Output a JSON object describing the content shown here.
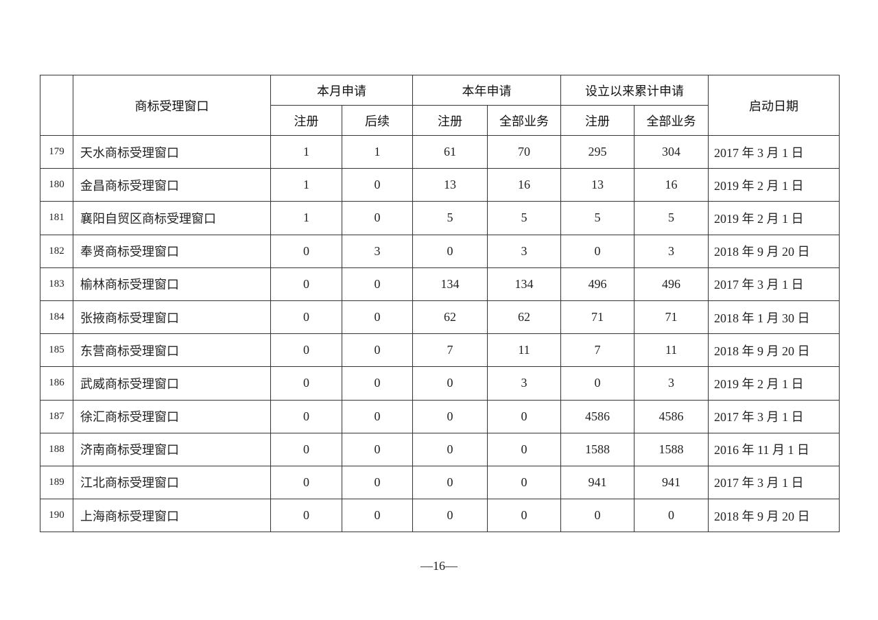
{
  "table": {
    "headers": {
      "name": "商标受理窗口",
      "month": "本月申请",
      "year": "本年申请",
      "cumulative": "设立以来累计申请",
      "start_date": "启动日期",
      "month_sub": [
        "注册",
        "后续"
      ],
      "year_sub": [
        "注册",
        "全部业务"
      ],
      "cumulative_sub": [
        "注册",
        "全部业务"
      ]
    },
    "rows": [
      {
        "no": "179",
        "name": "天水商标受理窗口",
        "m_reg": "1",
        "m_follow": "1",
        "y_reg": "61",
        "y_all": "70",
        "c_reg": "295",
        "c_all": "304",
        "date": "2017 年 3 月 1 日"
      },
      {
        "no": "180",
        "name": "金昌商标受理窗口",
        "m_reg": "1",
        "m_follow": "0",
        "y_reg": "13",
        "y_all": "16",
        "c_reg": "13",
        "c_all": "16",
        "date": "2019 年 2 月 1 日"
      },
      {
        "no": "181",
        "name": "襄阳自贸区商标受理窗口",
        "m_reg": "1",
        "m_follow": "0",
        "y_reg": "5",
        "y_all": "5",
        "c_reg": "5",
        "c_all": "5",
        "date": "2019 年 2 月 1 日"
      },
      {
        "no": "182",
        "name": "奉贤商标受理窗口",
        "m_reg": "0",
        "m_follow": "3",
        "y_reg": "0",
        "y_all": "3",
        "c_reg": "0",
        "c_all": "3",
        "date": "2018 年 9 月 20 日"
      },
      {
        "no": "183",
        "name": "榆林商标受理窗口",
        "m_reg": "0",
        "m_follow": "0",
        "y_reg": "134",
        "y_all": "134",
        "c_reg": "496",
        "c_all": "496",
        "date": "2017 年 3 月 1 日"
      },
      {
        "no": "184",
        "name": "张掖商标受理窗口",
        "m_reg": "0",
        "m_follow": "0",
        "y_reg": "62",
        "y_all": "62",
        "c_reg": "71",
        "c_all": "71",
        "date": "2018 年 1 月 30 日"
      },
      {
        "no": "185",
        "name": "东营商标受理窗口",
        "m_reg": "0",
        "m_follow": "0",
        "y_reg": "7",
        "y_all": "11",
        "c_reg": "7",
        "c_all": "11",
        "date": "2018 年 9 月 20 日"
      },
      {
        "no": "186",
        "name": "武威商标受理窗口",
        "m_reg": "0",
        "m_follow": "0",
        "y_reg": "0",
        "y_all": "3",
        "c_reg": "0",
        "c_all": "3",
        "date": "2019 年 2 月 1 日"
      },
      {
        "no": "187",
        "name": "徐汇商标受理窗口",
        "m_reg": "0",
        "m_follow": "0",
        "y_reg": "0",
        "y_all": "0",
        "c_reg": "4586",
        "c_all": "4586",
        "date": "2017 年 3 月 1 日"
      },
      {
        "no": "188",
        "name": "济南商标受理窗口",
        "m_reg": "0",
        "m_follow": "0",
        "y_reg": "0",
        "y_all": "0",
        "c_reg": "1588",
        "c_all": "1588",
        "date": "2016 年 11 月 1 日"
      },
      {
        "no": "189",
        "name": "江北商标受理窗口",
        "m_reg": "0",
        "m_follow": "0",
        "y_reg": "0",
        "y_all": "0",
        "c_reg": "941",
        "c_all": "941",
        "date": "2017 年 3 月 1 日"
      },
      {
        "no": "190",
        "name": "上海商标受理窗口",
        "m_reg": "0",
        "m_follow": "0",
        "y_reg": "0",
        "y_all": "0",
        "c_reg": "0",
        "c_all": "0",
        "date": "2018 年 9 月 20 日"
      }
    ]
  },
  "footer": {
    "page_number": "—16—"
  }
}
